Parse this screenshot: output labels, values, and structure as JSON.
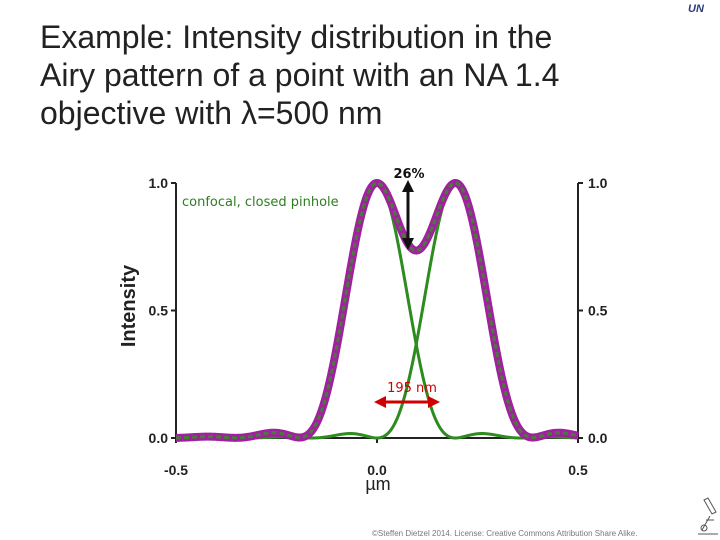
{
  "slide": {
    "title_lines": [
      "Example: Intensity distribution in the",
      "Airy pattern of a point with an NA 1.4",
      "objective with λ=500 nm"
    ],
    "logo_text": "UN",
    "copyright": "©Steffen Dietzel 2014. License: Creative Commons Attribution Share Alike."
  },
  "chart_data": {
    "type": "line",
    "xlabel": "µm",
    "ylabel": "Intensity",
    "xlim": [
      -0.5,
      0.5
    ],
    "ylim": [
      0.0,
      1.0
    ],
    "x_ticks": [
      "-0.5",
      "0.0",
      "0.5"
    ],
    "y_ticks_left": [
      "1.0",
      "0.5",
      "0.0"
    ],
    "y_ticks_right": [
      "1.0",
      "0.5",
      "0.0"
    ],
    "grid": false,
    "peak_separation_um": 0.195,
    "series": [
      {
        "name": "",
        "color": "#2e8b1f",
        "center": 0.0
      },
      {
        "name": "",
        "color": "#2e8b1f",
        "center": 0.195
      },
      {
        "name": "",
        "color": "#a020a0",
        "kind": "sum"
      }
    ],
    "annotations": {
      "pinhole_label": "confocal, closed pinhole",
      "dip_label": "26%",
      "separation_label": "195 nm"
    },
    "colors": {
      "single": "#2e8b1f",
      "sum": "#a020a0",
      "dip_arrow": "#111111",
      "separation_arrow": "#d00000"
    }
  }
}
